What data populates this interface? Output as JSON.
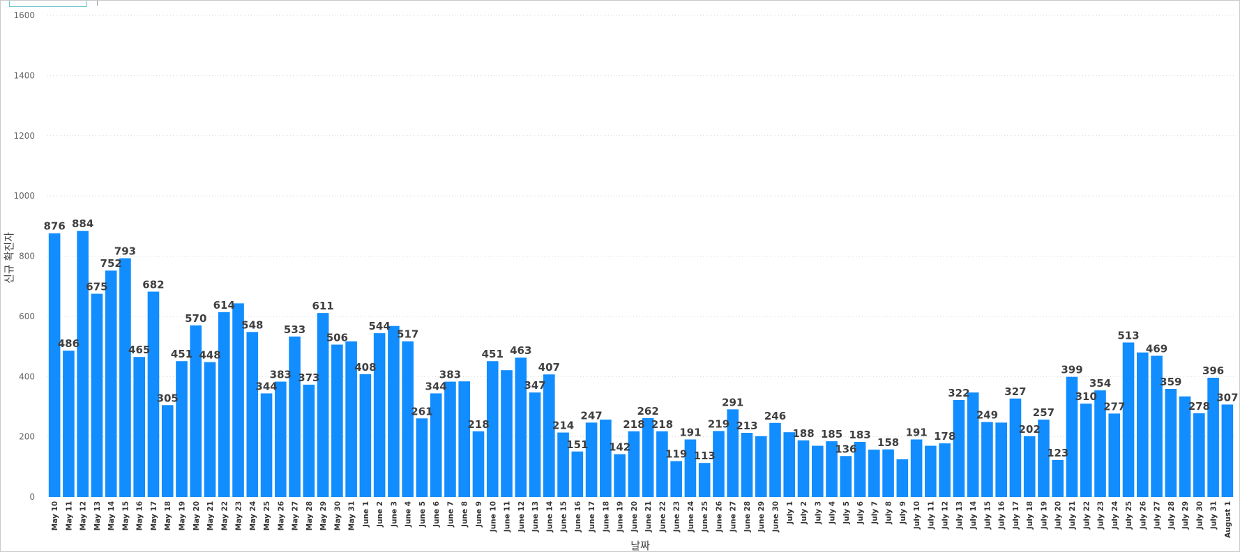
{
  "chart_data": {
    "type": "bar",
    "title": "",
    "xlabel": "날짜",
    "ylabel": "신규 확진자",
    "ylim": [
      0,
      1600
    ],
    "yticks": [
      0,
      200,
      400,
      600,
      800,
      1000,
      1200,
      1400,
      1600
    ],
    "grid": true,
    "bar_color": "#118DFF",
    "categories": [
      "May 10",
      "May 11",
      "May 12",
      "May 13",
      "May 14",
      "May 15",
      "May 16",
      "May 17",
      "May 18",
      "May 19",
      "May 20",
      "May 21",
      "May 22",
      "May 23",
      "May 24",
      "May 25",
      "May 26",
      "May 27",
      "May 28",
      "May 29",
      "May 30",
      "May 31",
      "June 1",
      "June 2",
      "June 3",
      "June 4",
      "June 5",
      "June 6",
      "June 7",
      "June 8",
      "June 9",
      "June 10",
      "June 11",
      "June 12",
      "June 13",
      "June 14",
      "June 15",
      "June 16",
      "June 17",
      "June 18",
      "June 19",
      "June 20",
      "June 21",
      "June 22",
      "June 23",
      "June 24",
      "June 25",
      "June 26",
      "June 27",
      "June 28",
      "June 29",
      "June 30",
      "July 1",
      "July 2",
      "July 3",
      "July 4",
      "July 5",
      "July 6",
      "July 7",
      "July 8",
      "July 9",
      "July 10",
      "July 11",
      "July 12",
      "July 13",
      "July 14",
      "July 15",
      "July 16",
      "July 17",
      "July 18",
      "July 19",
      "July 20",
      "July 21",
      "July 22",
      "July 23",
      "July 24",
      "July 25",
      "July 26",
      "July 27",
      "July 28",
      "July 29",
      "July 30",
      "July 31",
      "August 1"
    ],
    "values": [
      876,
      486,
      884,
      675,
      752,
      793,
      465,
      682,
      305,
      451,
      570,
      448,
      614,
      643,
      548,
      344,
      383,
      533,
      373,
      611,
      506,
      517,
      408,
      544,
      568,
      517,
      261,
      344,
      383,
      384,
      218,
      451,
      421,
      463,
      347,
      407,
      214,
      151,
      247,
      257,
      142,
      218,
      262,
      218,
      119,
      191,
      113,
      219,
      291,
      213,
      202,
      246,
      215,
      188,
      170,
      185,
      136,
      183,
      157,
      158,
      125,
      191,
      170,
      178,
      322,
      347,
      249,
      247,
      327,
      202,
      257,
      123,
      399,
      310,
      354,
      277,
      513,
      480,
      469,
      359,
      334,
      278,
      396,
      307
    ],
    "data_labels": [
      "876",
      "486",
      "884",
      "675",
      "752",
      "793",
      "465",
      "682",
      "305",
      "451",
      "570",
      "448",
      "614",
      "",
      "548",
      "344",
      "383",
      "533",
      "373",
      "611",
      "506",
      "",
      "408",
      "544",
      "",
      "517",
      "261",
      "344",
      "383",
      "",
      "218",
      "451",
      "",
      "463",
      "347",
      "407",
      "214",
      "151",
      "247",
      "",
      "142",
      "218",
      "262",
      "218",
      "119",
      "191",
      "113",
      "219",
      "291",
      "213",
      "",
      "246",
      "",
      "188",
      "",
      "185",
      "136",
      "183",
      "",
      "158",
      "",
      "191",
      "",
      "178",
      "322",
      "",
      "249",
      "",
      "327",
      "202",
      "257",
      "123",
      "399",
      "310",
      "354",
      "277",
      "513",
      "",
      "469",
      "359",
      "",
      "278",
      "396",
      "307"
    ]
  }
}
